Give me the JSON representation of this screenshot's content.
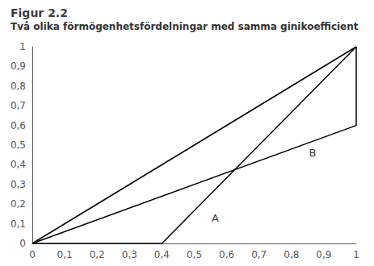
{
  "chart_data": {
    "type": "line",
    "title": "Figur 2.2",
    "subtitle": "Två olika förmögenhetsfördelningar med samma ginikoefficient",
    "xlim": [
      0,
      1
    ],
    "ylim": [
      0,
      1
    ],
    "xticks": [
      0,
      {
        "value": 0.1,
        "label": "0,1"
      },
      {
        "value": 0.2,
        "label": "0,2"
      },
      {
        "value": 0.3,
        "label": "0,3"
      },
      {
        "value": 0.4,
        "label": "0,4"
      },
      {
        "value": 0.5,
        "label": "0,5"
      },
      {
        "value": 0.6,
        "label": "0,6"
      },
      {
        "value": 0.7,
        "label": "0,7"
      },
      {
        "value": 0.8,
        "label": "0,8"
      },
      {
        "value": 0.9,
        "label": "0,9"
      },
      1
    ],
    "yticks": [
      0,
      {
        "value": 0.1,
        "label": "0,1"
      },
      {
        "value": 0.2,
        "label": "0,2"
      },
      {
        "value": 0.3,
        "label": "0,3"
      },
      {
        "value": 0.4,
        "label": "0,4"
      },
      {
        "value": 0.5,
        "label": "0,5"
      },
      {
        "value": 0.6,
        "label": "0,6"
      },
      {
        "value": 0.7,
        "label": "0,7"
      },
      {
        "value": 0.8,
        "label": "0,8"
      },
      {
        "value": 0.9,
        "label": "0,9"
      },
      1
    ],
    "series": [
      {
        "color": "#000000",
        "x": [
          0,
          1
        ],
        "values": [
          0,
          1
        ]
      },
      {
        "color": "#000000",
        "x": [
          0,
          0.4,
          1
        ],
        "values": [
          0,
          0,
          1
        ]
      },
      {
        "color": "#000000",
        "x": [
          0,
          1,
          1
        ],
        "values": [
          0,
          0.6,
          1
        ]
      }
    ],
    "annotations": [
      {
        "text": "A",
        "x": 0.565,
        "y": 0.13
      },
      {
        "text": "B",
        "x": 0.865,
        "y": 0.46
      }
    ],
    "grid": false
  }
}
